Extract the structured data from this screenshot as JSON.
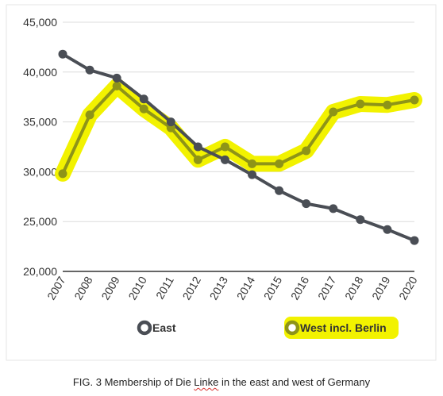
{
  "chart_data": {
    "type": "line",
    "categories": [
      "2007",
      "2008",
      "2009",
      "2010",
      "2011",
      "2012",
      "2013",
      "2014",
      "2015",
      "2016",
      "2017",
      "2018",
      "2019",
      "2020"
    ],
    "series": [
      {
        "name": "East",
        "color": "#4a4e55",
        "values": [
          41800,
          40200,
          39400,
          37300,
          35000,
          32500,
          31200,
          29700,
          28100,
          26800,
          26300,
          25200,
          24200,
          23100
        ]
      },
      {
        "name": "West incl. Berlin",
        "color": "#8e9418",
        "highlight": "#f2f200",
        "values": [
          29800,
          35700,
          38600,
          36300,
          34400,
          31200,
          32500,
          30800,
          30800,
          32100,
          36000,
          36800,
          36700,
          37200
        ]
      }
    ],
    "ylim": [
      20000,
      45000
    ],
    "yticks": [
      "20,000",
      "25,000",
      "30,000",
      "35,000",
      "40,000",
      "45,000"
    ],
    "ytick_values": [
      20000,
      25000,
      30000,
      35000,
      40000,
      45000
    ],
    "grid": true,
    "legend_position": "bottom",
    "title": "",
    "xlabel": "",
    "ylabel": ""
  },
  "caption": {
    "prefix": "FIG. 3 Membership of Die ",
    "marked_word": "Linke",
    "suffix": " in the east and west of Germany"
  }
}
